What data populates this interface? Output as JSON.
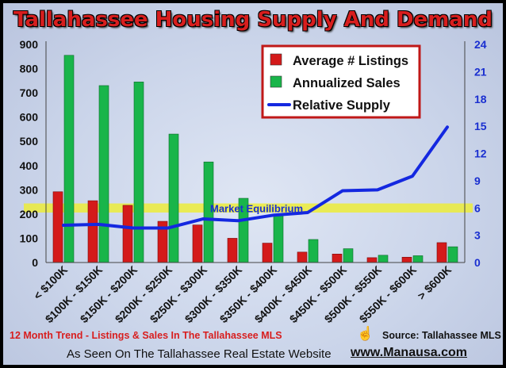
{
  "title": "Tallahassee Housing Supply And Demand",
  "footer": {
    "left": "12 Month Trend - Listings & Sales In The Tallahassee MLS",
    "source": "Source: Tallahassee MLS",
    "source_icon": "hand-icon",
    "seen": "As Seen On The Tallahassee Real Estate Website",
    "url": "www.Manausa.com"
  },
  "colors": {
    "listings": "#d41a1a",
    "sales": "#19b54a",
    "supply": "#1428e0",
    "equilibrium_band": "#ecec3a",
    "title": "#d81e1e",
    "right_axis": "#1a2fd0"
  },
  "chart_data": {
    "type": "bar",
    "categories": [
      "< $100K",
      "$100K - $150K",
      "$150K - $200K",
      "$200K - $250K",
      "$250K - $300K",
      "$300K - $350K",
      "$350K - $400K",
      "$400K - $450K",
      "$450K - $500K",
      "$500K - $550K",
      "$550K - $600K",
      "> $600K"
    ],
    "series": [
      {
        "name": "Average # Listings",
        "type": "bar",
        "axis": "left",
        "values": [
          292,
          255,
          236,
          170,
          155,
          100,
          80,
          43,
          35,
          20,
          22,
          82
        ]
      },
      {
        "name": "Annualized Sales",
        "type": "bar",
        "axis": "left",
        "values": [
          855,
          730,
          745,
          530,
          415,
          265,
          200,
          95,
          57,
          30,
          28,
          65
        ]
      },
      {
        "name": "Relative Supply",
        "type": "line",
        "axis": "right",
        "values": [
          4.1,
          4.2,
          3.8,
          3.8,
          4.8,
          4.6,
          5.2,
          5.5,
          7.9,
          8.0,
          9.5,
          14.9
        ]
      }
    ],
    "yticks_left": [
      "0",
      "100",
      "200",
      "300",
      "400",
      "500",
      "600",
      "700",
      "800",
      "900"
    ],
    "yticks_right": [
      "0",
      "3",
      "6",
      "9",
      "12",
      "15",
      "18",
      "21",
      "24"
    ],
    "ylim_left": [
      0,
      900
    ],
    "ylim_right": [
      0,
      24
    ],
    "equilibrium": {
      "label": "Market Equilibrium",
      "center": 6,
      "band": [
        5.5,
        6.5
      ]
    },
    "legend_position": "top-right",
    "grid": false
  }
}
